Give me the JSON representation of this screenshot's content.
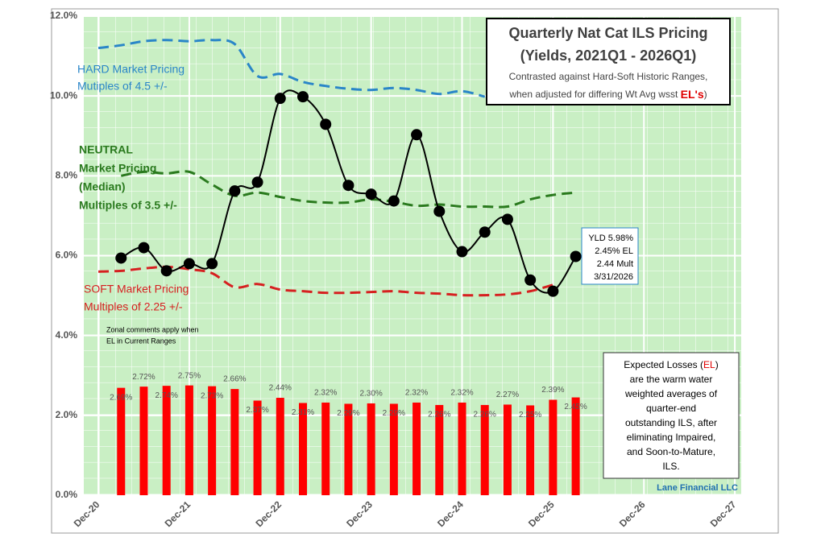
{
  "chart_data": {
    "type": "line",
    "title": "Quarterly Nat Cat ILS Pricing",
    "subtitle": "(Yields, 2021Q1 - 2026Q1)",
    "note": [
      "Contrasted against Hard-Soft Historic Ranges,",
      "when adjusted for differing Wt Avg wsst",
      "EL's",
      ")"
    ],
    "x": [
      2021,
      2021.25,
      2021.5,
      2021.75,
      2022,
      2022.25,
      2022.5,
      2022.75,
      2023,
      2023.25,
      2023.5,
      2023.75,
      2024,
      2024.25,
      2024.5,
      2024.75,
      2025,
      2025.25,
      2025.5,
      2025.75,
      2026,
      2026.25
    ],
    "xlim": [
      2020.84,
      2028.07
    ],
    "xticks": [
      {
        "value": 2021,
        "label": "Dec-20"
      },
      {
        "value": 2022,
        "label": "Dec-21"
      },
      {
        "value": 2023,
        "label": "Dec-22"
      },
      {
        "value": 2024,
        "label": "Dec-23"
      },
      {
        "value": 2025,
        "label": "Dec-24"
      },
      {
        "value": 2026,
        "label": "Dec-25"
      },
      {
        "value": 2027,
        "label": "Dec-26"
      },
      {
        "value": 2028,
        "label": "Dec-27"
      }
    ],
    "ylim": [
      0,
      12
    ],
    "yticks": [
      {
        "value": 0,
        "label": "0.0%"
      },
      {
        "value": 2,
        "label": "2.0%"
      },
      {
        "value": 4,
        "label": "4.0%"
      },
      {
        "value": 6,
        "label": "6.0%"
      },
      {
        "value": 8,
        "label": "8.0%"
      },
      {
        "value": 10,
        "label": "10.0%"
      },
      {
        "value": 12,
        "label": "12.0%"
      }
    ],
    "grid": true,
    "background": "#c9efc4",
    "series": [
      {
        "type": "bar",
        "color": "#ff0000",
        "values": [
          null,
          2.69,
          2.72,
          2.74,
          2.75,
          2.73,
          2.66,
          2.37,
          2.44,
          2.31,
          2.32,
          2.29,
          2.3,
          2.29,
          2.32,
          2.26,
          2.32,
          2.26,
          2.27,
          2.25,
          2.39,
          2.45
        ],
        "value_labels": [
          null,
          "2.69%",
          "2.72%",
          "2.74%",
          "2.75%",
          "2.73%",
          "2.66%",
          "2.37%",
          "2.44%",
          "2.31%",
          "2.32%",
          "2.29%",
          "2.30%",
          "2.29%",
          "2.32%",
          "2.26%",
          "2.32%",
          "2.26%",
          "2.27%",
          "2.25%",
          "2.39%",
          "2.45%"
        ]
      },
      {
        "type": "dashed",
        "color": "#2a86c8",
        "values": [
          11.2,
          11.27,
          11.37,
          11.4,
          11.37,
          11.4,
          11.3,
          10.5,
          10.55,
          10.35,
          10.25,
          10.18,
          10.15,
          10.2,
          10.15,
          10.05,
          10.12,
          9.98,
          null,
          null,
          null,
          null
        ]
      },
      {
        "type": "dashed",
        "color": "#2a7a1e",
        "values": [
          null,
          8.0,
          8.1,
          8.06,
          8.1,
          7.78,
          7.5,
          7.58,
          7.47,
          7.37,
          7.33,
          7.33,
          7.41,
          7.35,
          7.25,
          7.28,
          7.23,
          7.23,
          7.23,
          7.41,
          7.52,
          7.58
        ]
      },
      {
        "type": "dashed",
        "color": "#d62020",
        "values": [
          5.6,
          5.62,
          5.68,
          5.72,
          5.66,
          5.56,
          5.21,
          5.29,
          5.15,
          5.11,
          5.07,
          5.07,
          5.09,
          5.11,
          5.07,
          5.05,
          5.01,
          5.01,
          5.03,
          5.11,
          5.27,
          null
        ]
      },
      {
        "type": "smooth",
        "color": "#000000",
        "values": [
          null,
          5.94,
          6.2,
          5.62,
          5.8,
          5.8,
          7.62,
          7.84,
          9.94,
          9.98,
          9.29,
          7.76,
          7.54,
          7.37,
          9.03,
          7.11,
          6.1,
          6.59,
          6.91,
          5.39,
          5.11,
          5.98
        ]
      }
    ],
    "zones": {
      "hard": {
        "color": "#2a86c8",
        "lines": [
          "HARD Market Pricing",
          "Mutiples of 4.5 +/-"
        ]
      },
      "neutral": {
        "color": "#2a7a1e",
        "lines": [
          "NEUTRAL",
          "Market Pricing",
          "(Median)",
          "Multiples of 3.5 +/-"
        ]
      },
      "soft": {
        "color": "#d62020",
        "lines": [
          "SOFT Market Pricing",
          "Multiples of 2.25 +/-"
        ]
      },
      "comment": [
        "Zonal comments apply when",
        "EL in Current Ranges"
      ]
    },
    "latest": [
      "YLD 5.98%",
      "2.45% EL",
      "2.44 Mult",
      "3/31/2026"
    ],
    "el_note": [
      "Expected Losses (",
      "EL",
      ")",
      "are the warm water",
      "weighted averages of",
      "quarter-end",
      "outstanding ILS, after",
      "eliminating Impaired,",
      "and Soon-to-Mature,",
      "ILS."
    ],
    "source": "Lane Financial LLC"
  }
}
